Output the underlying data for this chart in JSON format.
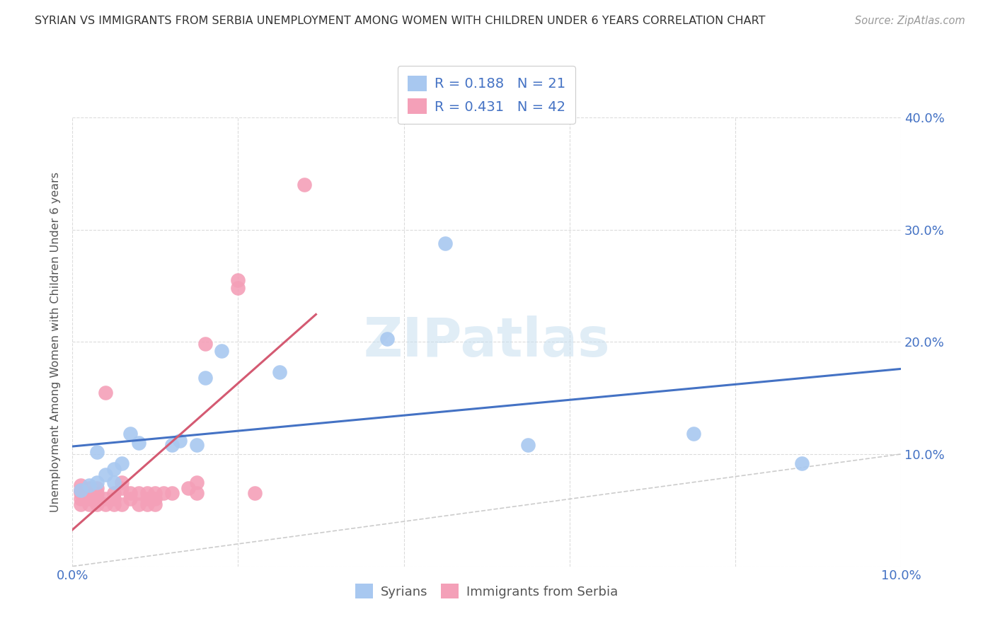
{
  "title": "SYRIAN VS IMMIGRANTS FROM SERBIA UNEMPLOYMENT AMONG WOMEN WITH CHILDREN UNDER 6 YEARS CORRELATION CHART",
  "source": "Source: ZipAtlas.com",
  "ylabel": "Unemployment Among Women with Children Under 6 years",
  "xlabel_syrians": "Syrians",
  "xlabel_serbia": "Immigrants from Serbia",
  "xlim": [
    0.0,
    0.1
  ],
  "ylim": [
    0.0,
    0.4
  ],
  "xticks": [
    0.0,
    0.02,
    0.04,
    0.06,
    0.08,
    0.1
  ],
  "yticks": [
    0.0,
    0.1,
    0.2,
    0.3,
    0.4
  ],
  "R_syrians": 0.188,
  "N_syrians": 21,
  "R_serbia": 0.431,
  "N_serbia": 42,
  "color_syrians": "#a8c8f0",
  "color_serbia": "#f4a0b8",
  "color_line_syrians": "#4472c4",
  "color_line_serbia": "#d45a72",
  "color_diag": "#c0c0c0",
  "syrians_x": [
    0.001,
    0.002,
    0.003,
    0.003,
    0.004,
    0.005,
    0.005,
    0.006,
    0.007,
    0.008,
    0.012,
    0.013,
    0.015,
    0.016,
    0.018,
    0.025,
    0.038,
    0.045,
    0.055,
    0.075,
    0.088
  ],
  "syrians_y": [
    0.068,
    0.072,
    0.075,
    0.102,
    0.082,
    0.087,
    0.075,
    0.092,
    0.118,
    0.11,
    0.108,
    0.112,
    0.108,
    0.168,
    0.192,
    0.173,
    0.203,
    0.288,
    0.108,
    0.118,
    0.092
  ],
  "serbia_x": [
    0.001,
    0.001,
    0.001,
    0.001,
    0.001,
    0.002,
    0.002,
    0.002,
    0.002,
    0.003,
    0.003,
    0.003,
    0.003,
    0.004,
    0.004,
    0.004,
    0.005,
    0.005,
    0.005,
    0.006,
    0.006,
    0.006,
    0.007,
    0.007,
    0.008,
    0.008,
    0.009,
    0.009,
    0.009,
    0.01,
    0.01,
    0.01,
    0.011,
    0.012,
    0.014,
    0.015,
    0.015,
    0.016,
    0.02,
    0.02,
    0.022,
    0.028
  ],
  "serbia_y": [
    0.055,
    0.06,
    0.065,
    0.068,
    0.072,
    0.055,
    0.06,
    0.065,
    0.07,
    0.055,
    0.06,
    0.065,
    0.07,
    0.055,
    0.06,
    0.155,
    0.055,
    0.06,
    0.065,
    0.055,
    0.07,
    0.075,
    0.06,
    0.065,
    0.055,
    0.065,
    0.055,
    0.06,
    0.065,
    0.055,
    0.06,
    0.065,
    0.065,
    0.065,
    0.07,
    0.065,
    0.075,
    0.198,
    0.248,
    0.255,
    0.065,
    0.34
  ],
  "watermark": "ZIPatlas",
  "background_color": "#ffffff",
  "grid_color": "#d8d8d8"
}
